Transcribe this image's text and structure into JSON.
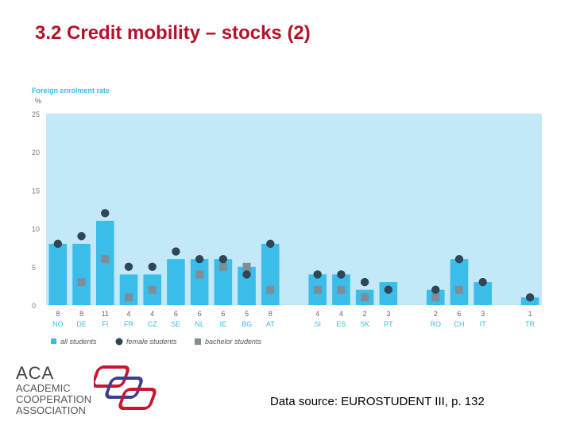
{
  "slide": {
    "title": "3.2 Credit mobility – stocks (2)",
    "source": "Data source: EUROSTUDENT III, p. 132"
  },
  "logo": {
    "abbr": "ACA",
    "lines": [
      "ACADEMIC",
      "COOPERATION",
      "ASSOCIATION"
    ]
  },
  "colors": {
    "title": "#b3132a",
    "panel": "#c3e8f8",
    "bar": "#3bbde9",
    "female": "#2f4755",
    "bachelor": "#7f8d96",
    "axis_text": "#3bbde9"
  },
  "chart_data": {
    "type": "bar",
    "ylabel": "Foreign enrolment rate",
    "yunit": "%",
    "ylim": [
      0,
      25
    ],
    "yticks": [
      0,
      5,
      10,
      15,
      20,
      25
    ],
    "grid": false,
    "legend_position": "bottom-left",
    "categories": [
      "NO",
      "DE",
      "FI",
      "FR",
      "CZ",
      "SE",
      "NL",
      "IE",
      "BG",
      "AT",
      "",
      "SI",
      "ES",
      "SK",
      "PT",
      "",
      "RO",
      "CH",
      "IT",
      "",
      "TR"
    ],
    "value_labels": [
      "8",
      "8",
      "11",
      "4",
      "4",
      "6",
      "6",
      "6",
      "5",
      "8",
      "",
      "4",
      "4",
      "2",
      "3",
      "",
      "2",
      "6",
      "3",
      "",
      "1"
    ],
    "series": [
      {
        "name": "all students",
        "marker": "bar",
        "values": [
          8,
          8,
          11,
          4,
          4,
          6,
          6,
          6,
          5,
          8,
          null,
          4,
          4,
          2,
          3,
          null,
          2,
          6,
          3,
          null,
          1
        ]
      },
      {
        "name": "female students",
        "marker": "circle",
        "values": [
          8,
          9,
          12,
          5,
          5,
          7,
          6,
          6,
          4,
          8,
          null,
          4,
          4,
          3,
          2,
          null,
          2,
          6,
          3,
          null,
          1
        ]
      },
      {
        "name": "bachelor students",
        "marker": "square",
        "values": [
          null,
          3,
          6,
          1,
          2,
          null,
          4,
          5,
          5,
          2,
          null,
          2,
          2,
          1,
          null,
          null,
          1,
          2,
          null,
          null,
          null
        ]
      }
    ]
  }
}
